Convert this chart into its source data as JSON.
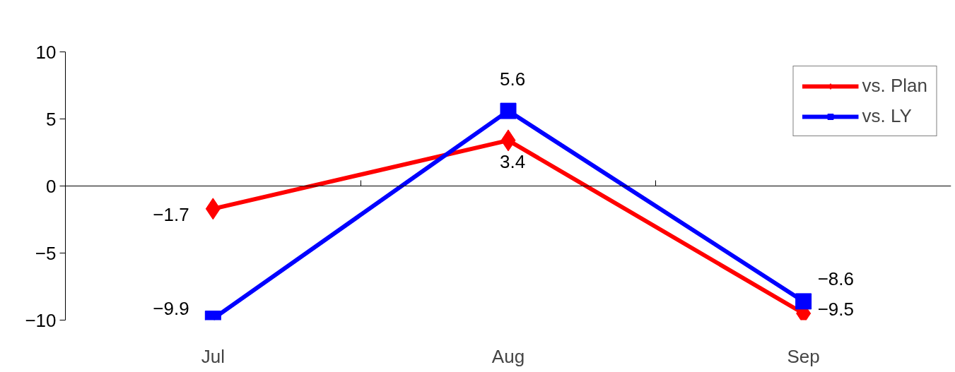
{
  "chart_data": {
    "type": "line",
    "categories": [
      "Jul",
      "Aug",
      "Sep"
    ],
    "series": [
      {
        "name": "vs. Plan",
        "color": "#ff0000",
        "marker": "diamond",
        "values": [
          -1.7,
          3.4,
          -9.5
        ]
      },
      {
        "name": "vs. LY",
        "color": "#0000ff",
        "marker": "square",
        "values": [
          -9.9,
          5.6,
          -8.6
        ]
      }
    ],
    "ylim": [
      -10,
      10
    ],
    "yticks": [
      -10,
      -5,
      0,
      5,
      10
    ],
    "data_labels": true,
    "legend": "top right",
    "line_style": "solid"
  }
}
